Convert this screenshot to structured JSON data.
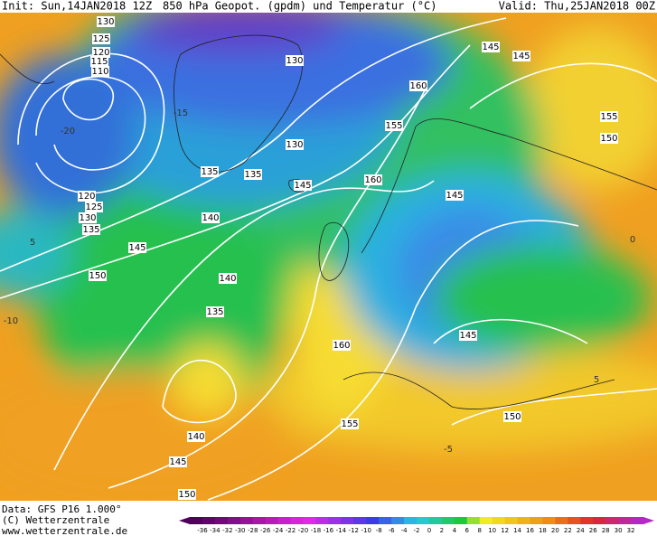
{
  "header": {
    "init": "Init: Sun,14JAN2018 12Z",
    "title": "850 hPa Geopot. (gpdm) und Temperatur (°C)",
    "valid": "Valid: Thu,25JAN2018 00Z"
  },
  "map": {
    "contour_labels": [
      "130",
      "125",
      "120",
      "115",
      "110",
      "130",
      "145",
      "145",
      "160",
      "155",
      "155",
      "150",
      "135",
      "135",
      "130",
      "145",
      "160",
      "120",
      "125",
      "130",
      "135",
      "140",
      "145",
      "150",
      "140",
      "145",
      "135",
      "160",
      "145",
      "150",
      "155",
      "140",
      "145",
      "150"
    ],
    "temp_labels": [
      "-20",
      "-15",
      "-10",
      "5",
      "-5",
      "0",
      "5"
    ]
  },
  "footer": {
    "data": "Data: GFS P16 1.000°",
    "copyright": "(C) Wetterzentrale",
    "url": "www.wetterzentrale.de"
  },
  "colorbar": {
    "labels": [
      "-36",
      "-34",
      "-32",
      "-30",
      "-28",
      "-26",
      "-24",
      "-22",
      "-20",
      "-18",
      "-16",
      "-14",
      "-12",
      "-10",
      "-8",
      "-6",
      "-4",
      "-2",
      "0",
      "2",
      "4",
      "6",
      "8",
      "10",
      "12",
      "14",
      "16",
      "18",
      "20",
      "22",
      "24",
      "26",
      "28",
      "30",
      "32"
    ]
  }
}
